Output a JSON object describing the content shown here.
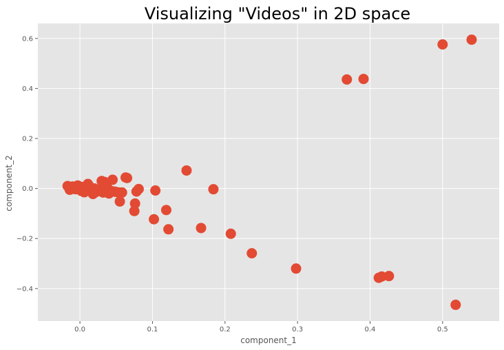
{
  "chart_data": {
    "type": "scatter",
    "title": "Visualizing \"Videos\" in 2D space",
    "xlabel": "component_1",
    "ylabel": "component_2",
    "xlim": [
      -0.058,
      0.578
    ],
    "ylim": [
      -0.53,
      0.66
    ],
    "xticks": [
      0.0,
      0.1,
      0.2,
      0.3,
      0.4,
      0.5
    ],
    "xtick_labels": [
      "0.0",
      "0.1",
      "0.2",
      "0.3",
      "0.4",
      "0.5"
    ],
    "yticks": [
      -0.4,
      -0.2,
      0.0,
      0.2,
      0.4,
      0.6
    ],
    "ytick_labels": [
      "−0.4",
      "−0.2",
      "0.0",
      "0.2",
      "0.4",
      "0.6"
    ],
    "grid": true,
    "colors": {
      "background": "#E5E5E5",
      "grid": "#FFFFFF",
      "marker": "#E24A33",
      "text": "#555555"
    },
    "points": [
      {
        "x": -0.017,
        "y": 0.01
      },
      {
        "x": -0.014,
        "y": -0.005
      },
      {
        "x": -0.01,
        "y": 0.008
      },
      {
        "x": -0.006,
        "y": -0.003
      },
      {
        "x": -0.003,
        "y": 0.012
      },
      {
        "x": 0.0,
        "y": 0.003
      },
      {
        "x": 0.002,
        "y": -0.01
      },
      {
        "x": 0.004,
        "y": 0.006
      },
      {
        "x": 0.006,
        "y": -0.015
      },
      {
        "x": 0.008,
        "y": 0.001
      },
      {
        "x": 0.01,
        "y": -0.006
      },
      {
        "x": 0.011,
        "y": 0.018
      },
      {
        "x": 0.013,
        "y": -0.002
      },
      {
        "x": 0.015,
        "y": 0.004
      },
      {
        "x": 0.016,
        "y": -0.012
      },
      {
        "x": 0.018,
        "y": -0.022
      },
      {
        "x": 0.02,
        "y": 0.0
      },
      {
        "x": 0.022,
        "y": -0.014
      },
      {
        "x": 0.025,
        "y": -0.008
      },
      {
        "x": 0.028,
        "y": -0.004
      },
      {
        "x": 0.03,
        "y": 0.03
      },
      {
        "x": 0.032,
        "y": -0.016
      },
      {
        "x": 0.034,
        "y": 0.026
      },
      {
        "x": 0.036,
        "y": -0.006
      },
      {
        "x": 0.038,
        "y": 0.002
      },
      {
        "x": 0.04,
        "y": -0.02
      },
      {
        "x": 0.043,
        "y": -0.01
      },
      {
        "x": 0.045,
        "y": 0.035
      },
      {
        "x": 0.047,
        "y": -0.012
      },
      {
        "x": 0.05,
        "y": -0.014
      },
      {
        "x": 0.054,
        "y": -0.016
      },
      {
        "x": 0.055,
        "y": -0.052
      },
      {
        "x": 0.058,
        "y": -0.016
      },
      {
        "x": 0.063,
        "y": 0.044
      },
      {
        "x": 0.065,
        "y": 0.042
      },
      {
        "x": 0.075,
        "y": -0.09
      },
      {
        "x": 0.076,
        "y": -0.06
      },
      {
        "x": 0.078,
        "y": -0.012
      },
      {
        "x": 0.081,
        "y": -0.002
      },
      {
        "x": 0.102,
        "y": -0.123
      },
      {
        "x": 0.104,
        "y": -0.008
      },
      {
        "x": 0.119,
        "y": -0.086
      },
      {
        "x": 0.122,
        "y": -0.163
      },
      {
        "x": 0.147,
        "y": 0.072
      },
      {
        "x": 0.167,
        "y": -0.158
      },
      {
        "x": 0.184,
        "y": -0.003
      },
      {
        "x": 0.208,
        "y": -0.181
      },
      {
        "x": 0.237,
        "y": -0.259
      },
      {
        "x": 0.298,
        "y": -0.32
      },
      {
        "x": 0.368,
        "y": 0.436
      },
      {
        "x": 0.391,
        "y": 0.438
      },
      {
        "x": 0.412,
        "y": -0.357
      },
      {
        "x": 0.416,
        "y": -0.352
      },
      {
        "x": 0.426,
        "y": -0.35
      },
      {
        "x": 0.5,
        "y": 0.576
      },
      {
        "x": 0.518,
        "y": -0.465
      },
      {
        "x": 0.54,
        "y": 0.595
      }
    ]
  }
}
